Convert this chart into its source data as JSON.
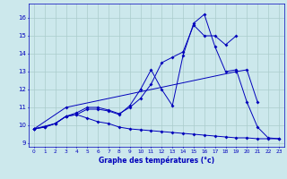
{
  "xlabel": "Graphe des températures (°c)",
  "xlim": [
    -0.5,
    23.5
  ],
  "ylim": [
    8.8,
    16.8
  ],
  "yticks": [
    9,
    10,
    11,
    12,
    13,
    14,
    15,
    16
  ],
  "xticks": [
    0,
    1,
    2,
    3,
    4,
    5,
    6,
    7,
    8,
    9,
    10,
    11,
    12,
    13,
    14,
    15,
    16,
    17,
    18,
    19,
    20,
    21,
    22,
    23
  ],
  "bg_color": "#cce8ec",
  "grid_color": "#aacccc",
  "line_color": "#0000bb",
  "series": [
    {
      "x": [
        0,
        1,
        2,
        3,
        4,
        5,
        6,
        7,
        8,
        9,
        10,
        11,
        12,
        13,
        14,
        15,
        16,
        17,
        18,
        19,
        20,
        21,
        22,
        23
      ],
      "y": [
        9.8,
        9.9,
        10.1,
        10.5,
        10.6,
        10.9,
        10.9,
        10.8,
        10.6,
        11.1,
        12.0,
        13.1,
        12.0,
        11.1,
        13.9,
        15.7,
        16.2,
        14.4,
        13.0,
        13.1,
        11.3,
        9.9,
        9.3,
        9.25
      ]
    },
    {
      "x": [
        0,
        1,
        2,
        3,
        4,
        5,
        6,
        7,
        8,
        9,
        10,
        11,
        12,
        13,
        14,
        15,
        16,
        17,
        18,
        19
      ],
      "y": [
        9.8,
        9.9,
        10.1,
        10.5,
        10.7,
        11.0,
        11.0,
        10.85,
        10.65,
        11.0,
        11.5,
        12.3,
        13.5,
        13.8,
        14.1,
        15.6,
        15.0,
        15.0,
        14.5,
        15.0
      ]
    },
    {
      "x": [
        0,
        2,
        3,
        4,
        5,
        6,
        7,
        8,
        9,
        10,
        11,
        12,
        13,
        14,
        15,
        16,
        17,
        18,
        19,
        20,
        21,
        22,
        23
      ],
      "y": [
        9.8,
        10.1,
        10.5,
        10.6,
        10.4,
        10.2,
        10.1,
        9.9,
        9.8,
        9.75,
        9.7,
        9.65,
        9.6,
        9.55,
        9.5,
        9.45,
        9.4,
        9.35,
        9.3,
        9.3,
        9.25,
        9.25,
        9.25
      ]
    },
    {
      "x": [
        0,
        3,
        19,
        20,
        21
      ],
      "y": [
        9.8,
        11.0,
        13.0,
        13.1,
        11.3
      ]
    }
  ]
}
